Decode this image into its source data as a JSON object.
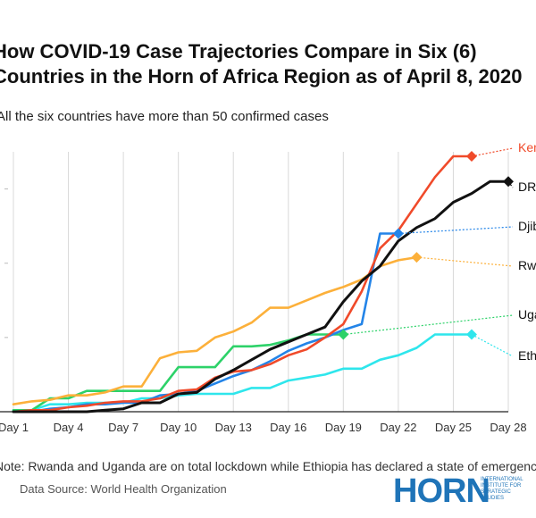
{
  "chart_data": {
    "type": "line",
    "title": "How COVID-19 Case Trajectories Compare in Six (6) Countries in the Horn of Africa Region as of April 8, 2020",
    "subtitle": "All the six countries have more than 50 confirmed cases",
    "xlabel": "",
    "ylabel": "",
    "x_ticks": [
      "Day 1",
      "Day 4",
      "Day 7",
      "Day 10",
      "Day 13",
      "Day 16",
      "Day 19",
      "Day 22",
      "Day 25",
      "Day 28"
    ],
    "x_range": [
      1,
      28
    ],
    "y_range": [
      0,
      175
    ],
    "grid": "vertical",
    "legend": "line-end labels",
    "series": [
      {
        "name": "Kenya",
        "color": "#f04a2a",
        "label_text": "Ken",
        "label_color": "#f04a2a",
        "x": [
          1,
          2,
          3,
          4,
          5,
          6,
          7,
          8,
          9,
          10,
          11,
          12,
          13,
          14,
          15,
          16,
          17,
          18,
          19,
          20,
          21,
          22,
          23,
          24,
          25,
          26
        ],
        "y": [
          0,
          1,
          1,
          3,
          4,
          6,
          7,
          7,
          9,
          14,
          15,
          23,
          27,
          28,
          32,
          38,
          42,
          50,
          59,
          81,
          110,
          122,
          140,
          158,
          172,
          172
        ]
      },
      {
        "name": "DRC",
        "color": "#111111",
        "label_text": "DRC",
        "label_color": "#111111",
        "x": [
          1,
          2,
          3,
          4,
          5,
          6,
          7,
          8,
          9,
          10,
          11,
          12,
          13,
          14,
          15,
          16,
          17,
          18,
          19,
          20,
          21,
          22,
          23,
          24,
          25,
          26,
          27,
          28
        ],
        "y": [
          0,
          0,
          0,
          0,
          0,
          1,
          2,
          6,
          6,
          12,
          13,
          22,
          28,
          35,
          42,
          47,
          52,
          57,
          74,
          88,
          98,
          115,
          124,
          130,
          141,
          147,
          155,
          155
        ]
      },
      {
        "name": "Djibouti",
        "color": "#2384e8",
        "label_text": "Djib",
        "label_color": "#111111",
        "x": [
          1,
          2,
          3,
          4,
          5,
          6,
          7,
          8,
          9,
          10,
          11,
          12,
          13,
          14,
          15,
          16,
          17,
          18,
          19,
          20,
          21,
          22
        ],
        "y": [
          0,
          0,
          2,
          3,
          5,
          5,
          6,
          6,
          11,
          12,
          14,
          19,
          24,
          28,
          34,
          41,
          46,
          50,
          55,
          59,
          120,
          120
        ]
      },
      {
        "name": "Rwanda",
        "color": "#fcb03a",
        "label_text": "Rwa",
        "label_color": "#111111",
        "x": [
          1,
          2,
          3,
          4,
          5,
          6,
          7,
          8,
          9,
          10,
          11,
          12,
          13,
          14,
          15,
          16,
          17,
          18,
          19,
          20,
          21,
          22,
          23
        ],
        "y": [
          5,
          7,
          8,
          11,
          11,
          13,
          17,
          17,
          36,
          40,
          41,
          50,
          54,
          60,
          70,
          70,
          75,
          80,
          84,
          89,
          98,
          102,
          104
        ]
      },
      {
        "name": "Uganda",
        "color": "#2dd269",
        "label_text": "Uga",
        "label_color": "#111111",
        "x": [
          1,
          2,
          3,
          4,
          5,
          6,
          7,
          8,
          9,
          10,
          11,
          12,
          13,
          14,
          15,
          16,
          17,
          18,
          19
        ],
        "y": [
          1,
          1,
          9,
          9,
          14,
          14,
          14,
          14,
          14,
          30,
          30,
          30,
          44,
          44,
          45,
          48,
          52,
          52,
          52
        ]
      },
      {
        "name": "Ethiopia",
        "color": "#2ee6ec",
        "label_text": "Eth",
        "label_color": "#111111",
        "x": [
          1,
          2,
          3,
          4,
          5,
          6,
          7,
          8,
          9,
          10,
          11,
          12,
          13,
          14,
          15,
          16,
          17,
          18,
          19,
          20,
          21,
          22,
          23,
          24,
          25,
          26
        ],
        "y": [
          1,
          1,
          5,
          5,
          6,
          6,
          6,
          9,
          9,
          11,
          12,
          12,
          12,
          16,
          16,
          21,
          23,
          25,
          29,
          29,
          35,
          38,
          43,
          52,
          52,
          52
        ]
      }
    ]
  },
  "note": "Note: Rwanda and Uganda are on total lockdown while Ethiopia has declared a state of emergency",
  "source": "Data Source: World Health Organization",
  "logo": {
    "word": "HORN",
    "subtitle": "INTERNATIONAL\nINSTITUTE FOR\nSTRATEGIC\nSTUDIES"
  }
}
